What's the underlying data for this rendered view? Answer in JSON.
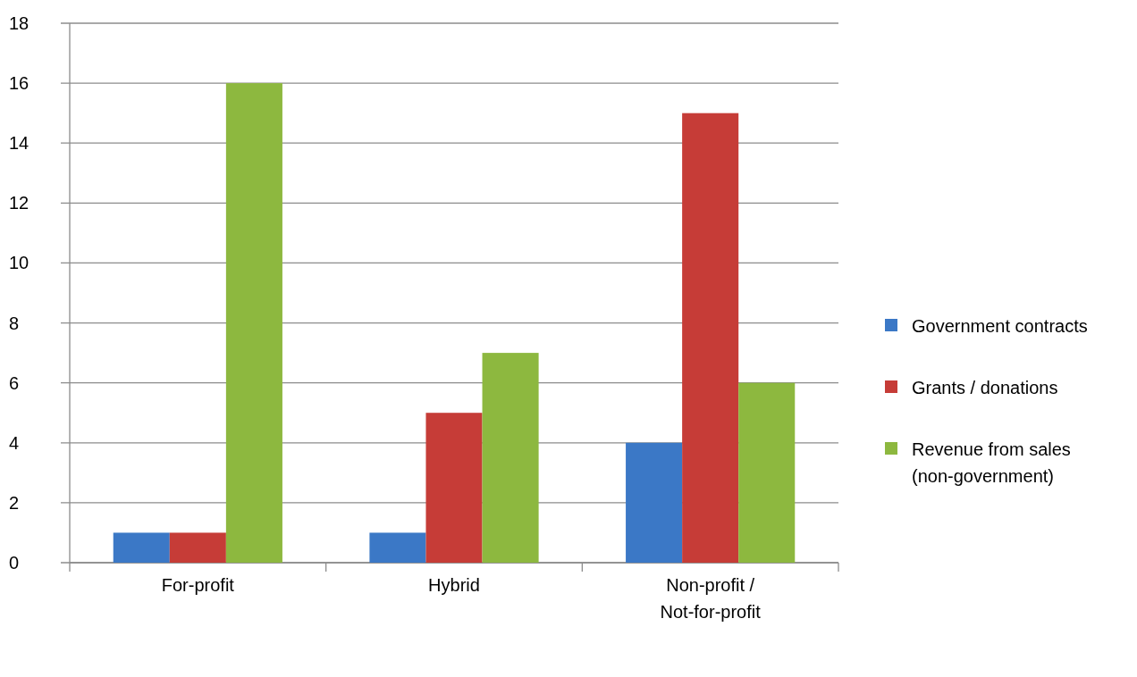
{
  "chart_data": {
    "type": "bar",
    "categories": [
      "For-profit",
      "Hybrid",
      "Non-profit / Not-for-profit"
    ],
    "series": [
      {
        "name": "Government contracts",
        "color": "#3b78c6",
        "values": [
          1,
          1,
          4
        ]
      },
      {
        "name": "Grants / donations",
        "color": "#c63c37",
        "values": [
          1,
          5,
          15
        ]
      },
      {
        "name": "Revenue from sales (non-government)",
        "color": "#8db83f",
        "values": [
          16,
          7,
          6
        ]
      }
    ],
    "ylim": [
      0,
      18
    ],
    "yticks": [
      0,
      2,
      4,
      6,
      8,
      10,
      12,
      14,
      16,
      18
    ],
    "grid": "y",
    "legend": "right"
  }
}
